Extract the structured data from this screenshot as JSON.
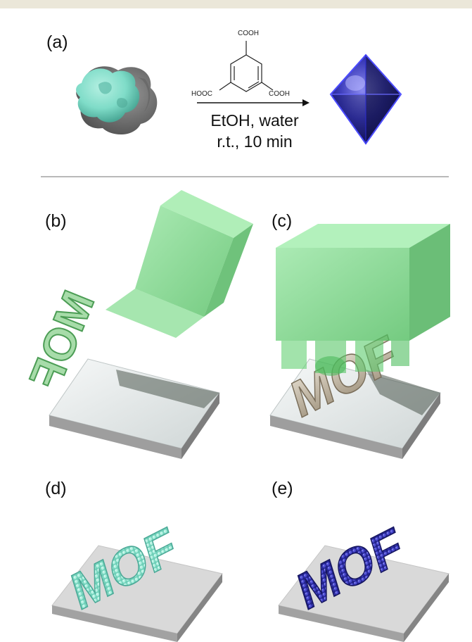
{
  "panels": {
    "a": "(a)",
    "b": "(b)",
    "c": "(c)",
    "d": "(d)",
    "e": "(e)"
  },
  "reaction": {
    "reagent_top": "COOH",
    "reagent_left": "HOOC",
    "reagent_right": "COOH",
    "condition_line1": "EtOH, water",
    "condition_line2": "r.t., 10 min"
  },
  "stamp_text": "MOF",
  "colors": {
    "stamp_green": "#5ccf6a",
    "precursor_teal": "#7fdcc8",
    "mof_blue": "#3a3ab8",
    "substrate_grey": "#d9d9d9",
    "divider": "#b9b9b9"
  }
}
